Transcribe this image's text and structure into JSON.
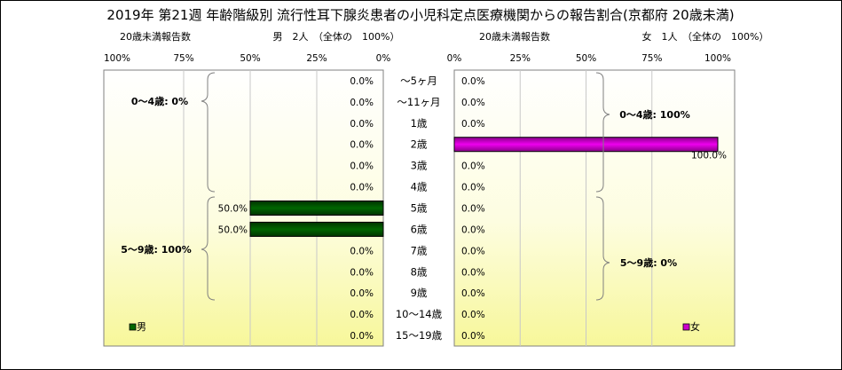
{
  "chart_data": {
    "type": "bar",
    "title": "2019年 第21週 年齢階級別 流行性耳下腺炎患者の小児科定点医療機関からの報告割合(京都府 20歳未満)",
    "categories": [
      "～5ヶ月",
      "～11ヶ月",
      "1歳",
      "2歳",
      "3歳",
      "4歳",
      "5歳",
      "6歳",
      "7歳",
      "8歳",
      "9歳",
      "10～14歳",
      "15～19歳"
    ],
    "xlim": [
      0,
      100
    ],
    "ticks": [
      "100%",
      "75%",
      "50%",
      "25%",
      "0%",
      "0%",
      "25%",
      "50%",
      "75%",
      "100%"
    ],
    "panels": {
      "male": {
        "header_label": "20歳未満報告数",
        "summary": "男　2人　（全体の　100%）",
        "legend": "男",
        "color": "#006600",
        "values": [
          0,
          0,
          0,
          0,
          0,
          0,
          50,
          50,
          0,
          0,
          0,
          0,
          0
        ],
        "value_labels": [
          "0.0%",
          "0.0%",
          "0.0%",
          "0.0%",
          "0.0%",
          "0.0%",
          "50.0%",
          "50.0%",
          "0.0%",
          "0.0%",
          "0.0%",
          "0.0%",
          "0.0%"
        ],
        "group_labels": [
          "0～4歳: 0%",
          "5～9歳: 100%"
        ]
      },
      "female": {
        "header_label": "20歳未満報告数",
        "summary": "女　1人　（全体の　100%）",
        "legend": "女",
        "color": "#cc00cc",
        "values": [
          0,
          0,
          0,
          100,
          0,
          0,
          0,
          0,
          0,
          0,
          0,
          0,
          0
        ],
        "value_labels": [
          "0.0%",
          "0.0%",
          "0.0%",
          "100.0%",
          "0.0%",
          "0.0%",
          "0.0%",
          "0.0%",
          "0.0%",
          "0.0%",
          "0.0%",
          "0.0%",
          "0.0%"
        ],
        "group_labels": [
          "0～4歳: 100%",
          "5～9歳: 0%"
        ]
      }
    }
  }
}
